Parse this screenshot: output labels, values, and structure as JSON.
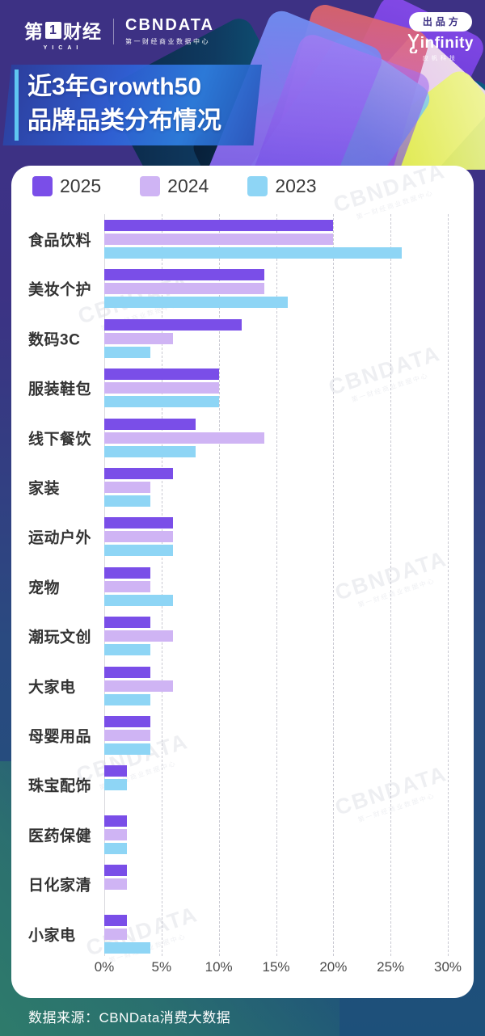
{
  "header": {
    "yicai_logo_prefix": "第",
    "yicai_logo_one": "1",
    "yicai_logo_suffix": "财经",
    "yicai_sub": "YICAI",
    "cbndata_logo": "CBNDATA",
    "cbndata_sub": "第一财经商业数据中心",
    "producer_badge": "出品方",
    "producer_logo": "infinity",
    "producer_sub": "应帆科技",
    "title_line1": "近3年Growth50",
    "title_line2": "品牌品类分布情况"
  },
  "colors": {
    "y2025": "#7a4ee8",
    "y2024": "#cfb4f4",
    "y2023": "#8ed5f5",
    "header_bg": "#3d3184",
    "footer_teal": "#2e7b6b"
  },
  "legend": [
    {
      "label": "2025",
      "color": "#7a4ee8"
    },
    {
      "label": "2024",
      "color": "#cfb4f4"
    },
    {
      "label": "2023",
      "color": "#8ed5f5"
    }
  ],
  "chart_data": {
    "type": "bar",
    "orientation": "horizontal",
    "title": "近3年Growth50品牌品类分布情况",
    "categories": [
      "食品饮料",
      "美妆个护",
      "数码3C",
      "服装鞋包",
      "线下餐饮",
      "家装",
      "运动户外",
      "宠物",
      "潮玩文创",
      "大家电",
      "母婴用品",
      "珠宝配饰",
      "医药保健",
      "日化家清",
      "小家电"
    ],
    "series": [
      {
        "name": "2025",
        "color": "#7a4ee8",
        "values": [
          20,
          14,
          12,
          10,
          8,
          6,
          6,
          4,
          4,
          4,
          4,
          2,
          2,
          2,
          2
        ]
      },
      {
        "name": "2024",
        "color": "#cfb4f4",
        "values": [
          20,
          14,
          6,
          10,
          14,
          4,
          6,
          4,
          6,
          6,
          4,
          0,
          2,
          2,
          2
        ]
      },
      {
        "name": "2023",
        "color": "#8ed5f5",
        "values": [
          26,
          16,
          4,
          10,
          8,
          4,
          6,
          6,
          4,
          4,
          4,
          2,
          2,
          0,
          4
        ]
      }
    ],
    "x_ticks": [
      "0%",
      "5%",
      "10%",
      "15%",
      "20%",
      "25%",
      "30%"
    ],
    "xlim": [
      0,
      30
    ],
    "grid": "dashed-vertical",
    "legend_position": "top-left",
    "unit": "%"
  },
  "watermark": {
    "text": "CBNDATA",
    "sub": "第一财经商业数据中心"
  },
  "footer": {
    "source": "数据来源：CBNData消费大数据"
  }
}
